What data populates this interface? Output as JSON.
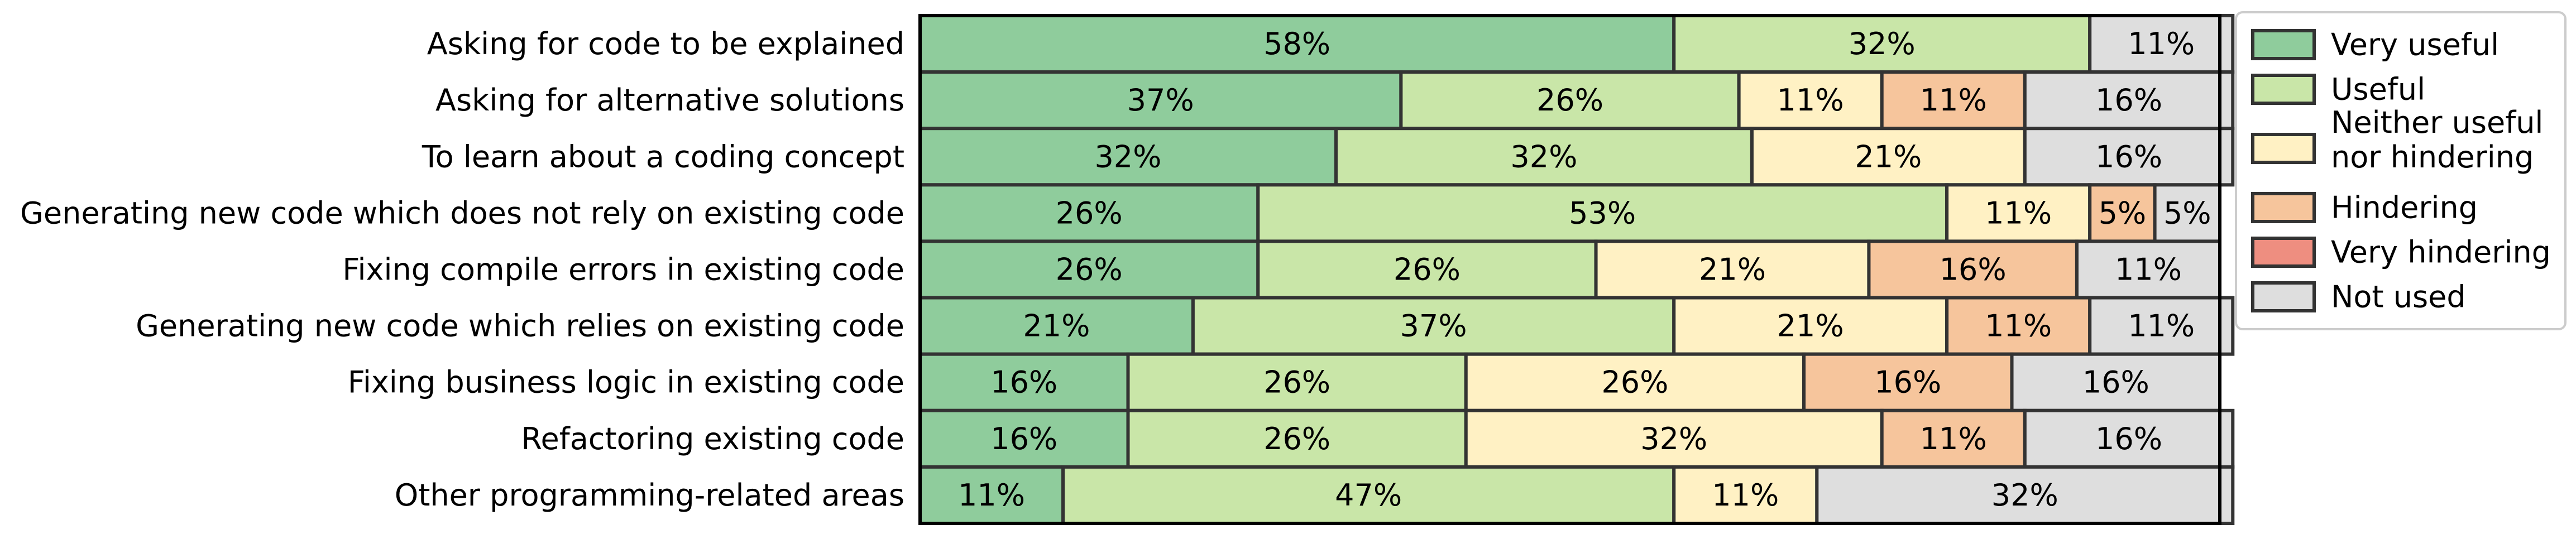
{
  "chart_data": {
    "type": "bar",
    "orientation": "horizontal",
    "stacked": true,
    "title": "",
    "xlabel": "",
    "ylabel": "",
    "xlim": [
      0,
      100
    ],
    "grid": false,
    "legend_position": "right",
    "categories": [
      "Asking for code to be explained",
      "Asking for alternative solutions",
      "To learn about a coding concept",
      "Generating new code which does not rely on existing code",
      "Fixing compile errors in existing code",
      "Generating new code which relies on existing code",
      "Fixing business logic in existing code",
      "Refactoring existing code",
      "Other programming-related areas"
    ],
    "series": [
      {
        "name": "Very useful",
        "color": "#8fcc9c",
        "values": [
          58,
          37,
          32,
          26,
          26,
          21,
          16,
          16,
          11
        ]
      },
      {
        "name": "Useful",
        "color": "#c9e6a8",
        "values": [
          32,
          26,
          32,
          53,
          26,
          37,
          26,
          26,
          47
        ]
      },
      {
        "name": "Neither useful nor hindering",
        "legend_lines": [
          "Neither useful",
          "nor hindering"
        ],
        "color": "#fff1c4",
        "values": [
          0,
          11,
          21,
          11,
          21,
          21,
          26,
          32,
          11
        ]
      },
      {
        "name": "Hindering",
        "color": "#f6c59c",
        "values": [
          0,
          11,
          0,
          5,
          16,
          11,
          16,
          11,
          0
        ]
      },
      {
        "name": "Very hindering",
        "color": "#ee8e80",
        "values": [
          0,
          0,
          0,
          0,
          0,
          0,
          0,
          0,
          0
        ]
      },
      {
        "name": "Not used",
        "color": "#dedede",
        "values": [
          11,
          16,
          16,
          5,
          11,
          11,
          16,
          16,
          32
        ]
      }
    ]
  }
}
